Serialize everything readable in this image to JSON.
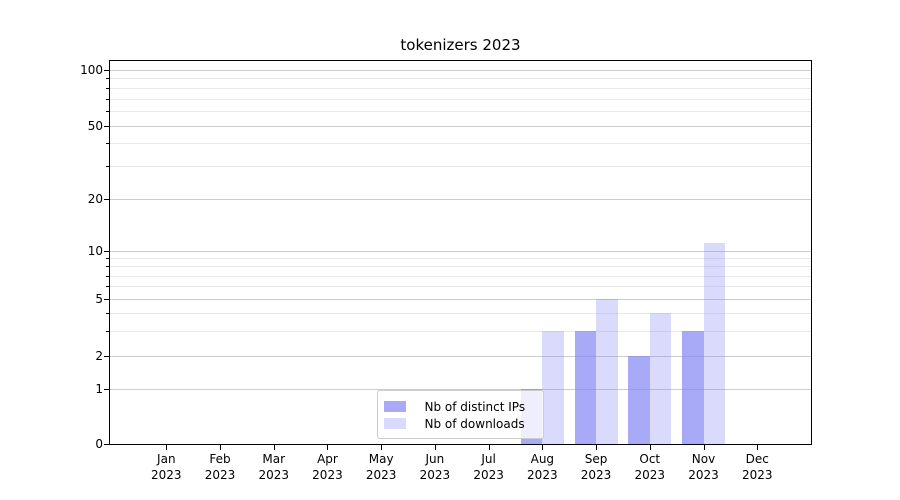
{
  "title": "tokenizers 2023",
  "chart_data": {
    "type": "bar",
    "title": "tokenizers 2023",
    "categories": [
      "Jan 2023",
      "Feb 2023",
      "Mar 2023",
      "Apr 2023",
      "May 2023",
      "Jun 2023",
      "Jul 2023",
      "Aug 2023",
      "Sep 2023",
      "Oct 2023",
      "Nov 2023",
      "Dec 2023"
    ],
    "x_tick_labels": [
      {
        "line1": "Jan",
        "line2": "2023"
      },
      {
        "line1": "Feb",
        "line2": "2023"
      },
      {
        "line1": "Mar",
        "line2": "2023"
      },
      {
        "line1": "Apr",
        "line2": "2023"
      },
      {
        "line1": "May",
        "line2": "2023"
      },
      {
        "line1": "Jun",
        "line2": "2023"
      },
      {
        "line1": "Jul",
        "line2": "2023"
      },
      {
        "line1": "Aug",
        "line2": "2023"
      },
      {
        "line1": "Sep",
        "line2": "2023"
      },
      {
        "line1": "Oct",
        "line2": "2023"
      },
      {
        "line1": "Nov",
        "line2": "2023"
      },
      {
        "line1": "Dec",
        "line2": "2023"
      }
    ],
    "series": [
      {
        "name": "Nb of distinct IPs",
        "fill": "rgba(131,134,245,0.7)",
        "values": [
          0,
          0,
          0,
          0,
          0,
          0,
          0,
          1,
          3,
          2,
          3,
          0
        ]
      },
      {
        "name": "Nb of downloads",
        "fill": "rgba(131,134,245,0.3)",
        "values": [
          0,
          0,
          0,
          0,
          0,
          0,
          0,
          3,
          5,
          4,
          11,
          0
        ]
      }
    ],
    "y_axis": {
      "scale": "symlog",
      "major_ticks": [
        0,
        1,
        2,
        5,
        10,
        20,
        50,
        100
      ],
      "minor_ticks": [
        3,
        4,
        6,
        7,
        8,
        9,
        30,
        40,
        60,
        70,
        80,
        90
      ],
      "range": [
        0,
        112
      ]
    },
    "grid": {
      "major_color": "#cdcdcd",
      "minor_color": "#e8e8e8"
    },
    "legend": {
      "location": "lower center",
      "entries": [
        "Nb of distinct IPs",
        "Nb of downloads"
      ]
    }
  }
}
